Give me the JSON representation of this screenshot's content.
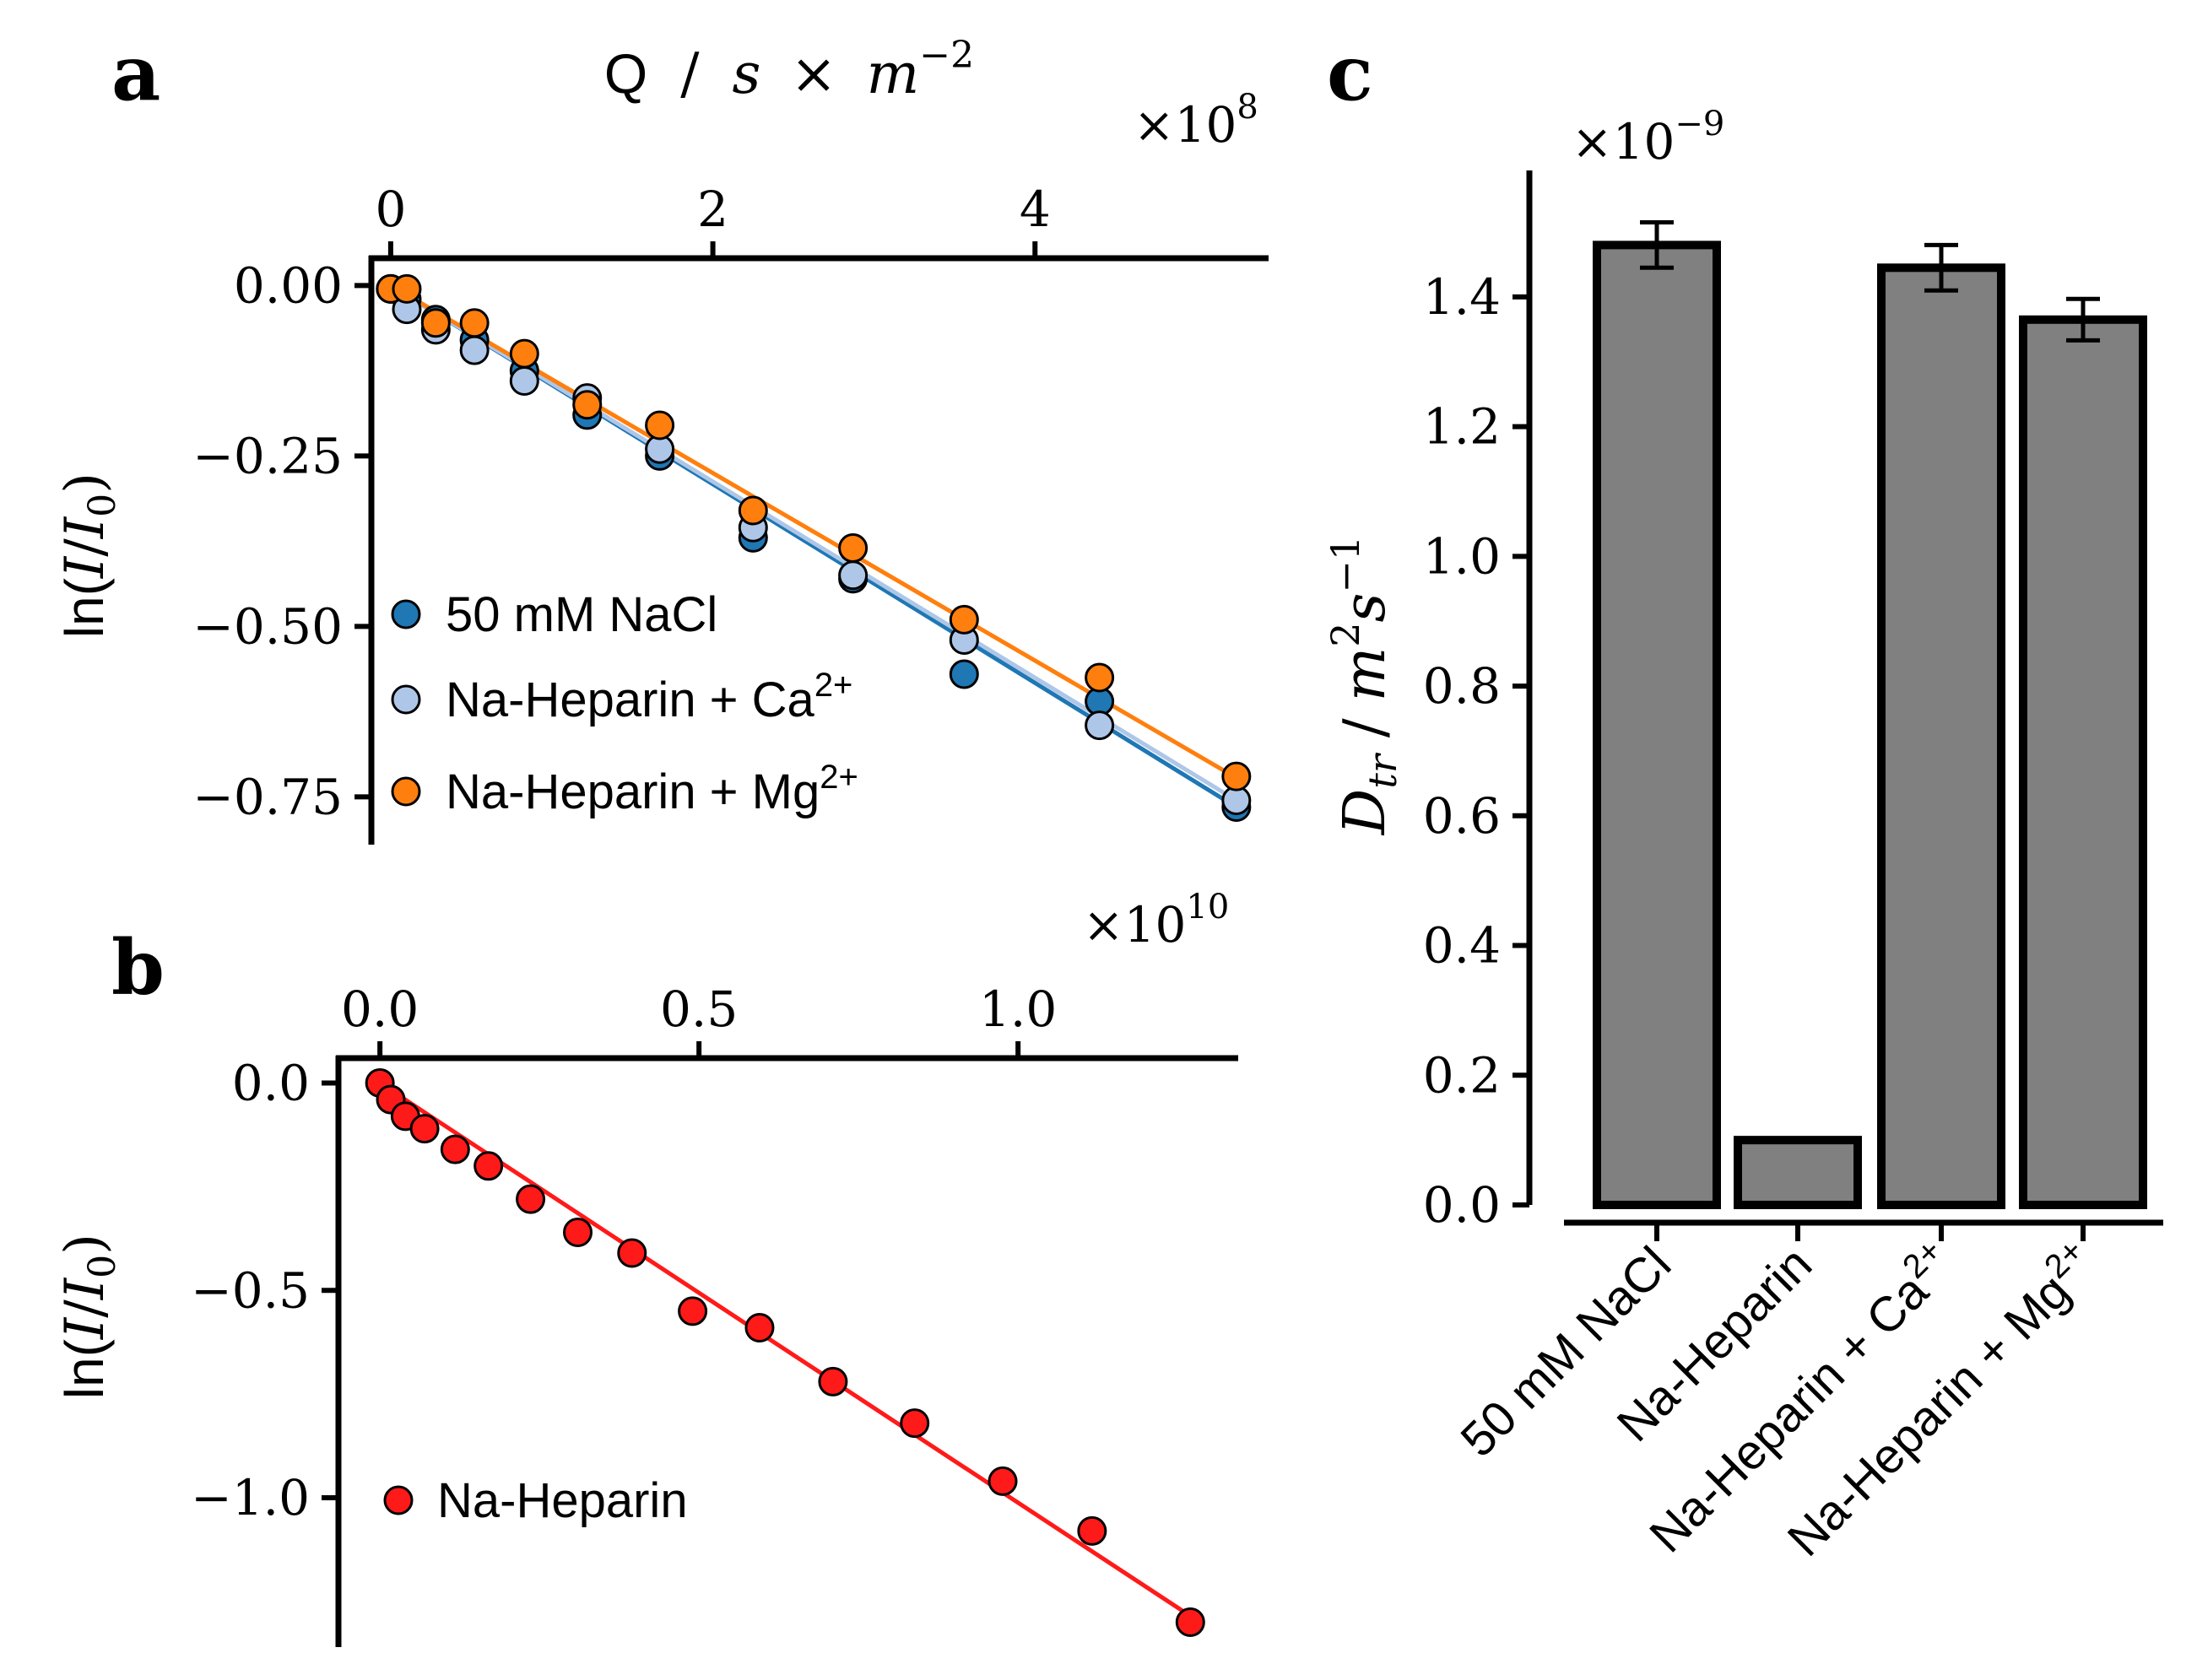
{
  "chart_data": [
    {
      "panel": "a",
      "type": "scatter",
      "title": "",
      "xlabel": "Q / s × m^-2",
      "xlabel_parts": {
        "main": "Q",
        "slash": "/",
        "s": "s",
        "times": "×",
        "m": "m",
        "exp": "−2"
      },
      "x_multiplier": {
        "base": "×10",
        "exp": "8"
      },
      "ylabel": "ln(I/I0)",
      "ylabel_parts": {
        "ln": "ln(",
        "I": "I",
        "slash": "/",
        "I0": "I",
        "sub": "0",
        "close": ")"
      },
      "xlim": [
        -0.12,
        5.45
      ],
      "ylim": [
        -0.82,
        0.04
      ],
      "xticks": [
        0,
        2,
        4
      ],
      "xtick_labels": [
        "0",
        "2",
        "4"
      ],
      "yticks": [
        0.0,
        -0.25,
        -0.5,
        -0.75
      ],
      "ytick_labels": [
        "0.00",
        "−0.25",
        "−0.50",
        "−0.75"
      ],
      "legend_position": "lower-left",
      "series": [
        {
          "name": "50 mM NaCl",
          "color": "#1f77b4",
          "x": [
            0.0,
            0.1,
            0.28,
            0.52,
            0.83,
            1.22,
            1.67,
            2.25,
            2.87,
            3.56,
            4.4,
            5.25
          ],
          "y": [
            -0.005,
            -0.02,
            -0.05,
            -0.08,
            -0.125,
            -0.19,
            -0.25,
            -0.37,
            -0.43,
            -0.57,
            -0.61,
            -0.765
          ],
          "fit": {
            "x": [
              0.0,
              5.25
            ],
            "y": [
              0.0,
              -0.765
            ]
          }
        },
        {
          "name": "Na-Heparin + Ca",
          "name_sup": "2+",
          "color": "#aec7e8",
          "x": [
            0.0,
            0.1,
            0.28,
            0.52,
            0.83,
            1.22,
            1.67,
            2.25,
            2.87,
            3.56,
            4.4,
            5.25
          ],
          "y": [
            -0.005,
            -0.035,
            -0.065,
            -0.095,
            -0.14,
            -0.165,
            -0.24,
            -0.355,
            -0.425,
            -0.52,
            -0.645,
            -0.755
          ],
          "fit": {
            "x": [
              0.0,
              5.25
            ],
            "y": [
              0.0,
              -0.755
            ]
          }
        },
        {
          "name": "Na-Heparin + Mg",
          "name_sup": "2+",
          "color": "#ff7f0e",
          "x": [
            0.0,
            0.1,
            0.28,
            0.52,
            0.83,
            1.22,
            1.67,
            2.25,
            2.87,
            3.56,
            4.4,
            5.25
          ],
          "y": [
            -0.005,
            -0.005,
            -0.055,
            -0.055,
            -0.1,
            -0.175,
            -0.205,
            -0.33,
            -0.385,
            -0.49,
            -0.575,
            -0.72
          ],
          "fit": {
            "x": [
              0.0,
              5.25
            ],
            "y": [
              0.0,
              -0.722
            ]
          }
        }
      ]
    },
    {
      "panel": "b",
      "type": "scatter",
      "title": "",
      "xlabel": "",
      "x_multiplier": {
        "base": "×10",
        "exp": "10"
      },
      "ylabel": "ln(I/I0)",
      "ylabel_parts": {
        "ln": "ln(",
        "I": "I",
        "slash": "/",
        "I0": "I",
        "sub": "0",
        "close": ")"
      },
      "xlim": [
        -0.065,
        1.345
      ],
      "ylim": [
        -1.36,
        0.06
      ],
      "xticks": [
        0.0,
        0.5,
        1.0
      ],
      "xtick_labels": [
        "0.0",
        "0.5",
        "1.0"
      ],
      "yticks": [
        0.0,
        -0.5,
        -1.0
      ],
      "ytick_labels": [
        "0.0",
        "−0.5",
        "−1.0"
      ],
      "legend_position": "lower-left",
      "series": [
        {
          "name": "Na-Heparin",
          "color": "#ff1a1a",
          "x": [
            0.0,
            0.017,
            0.04,
            0.07,
            0.118,
            0.17,
            0.236,
            0.31,
            0.395,
            0.49,
            0.595,
            0.71,
            0.838,
            0.976,
            1.116,
            1.27
          ],
          "y": [
            0.0,
            -0.04,
            -0.08,
            -0.11,
            -0.16,
            -0.2,
            -0.28,
            -0.36,
            -0.41,
            -0.55,
            -0.59,
            -0.72,
            -0.82,
            -0.96,
            -1.08,
            -1.3
          ],
          "fit": {
            "x": [
              0.0,
              1.27
            ],
            "y": [
              0.0,
              -1.285
            ]
          }
        }
      ]
    },
    {
      "panel": "c",
      "type": "bar",
      "title": "",
      "xlabel": "",
      "ylabel": "D_tr / m^2 s^-1",
      "ylabel_parts": {
        "D": "D",
        "sub": "tr",
        "slash": "/",
        "m": "m",
        "msup": "2",
        "s": "s",
        "ssup": "−1"
      },
      "y_multiplier": {
        "base": "×10",
        "exp": "−9"
      },
      "categories": [
        "50 mM NaCl",
        "Na-Heparin",
        "Na-Heparin + Ca",
        "Na-Heparin + Mg"
      ],
      "category_sups": [
        "",
        "",
        "2+",
        "2+"
      ],
      "values": [
        1.48,
        0.1,
        1.445,
        1.365
      ],
      "errors": [
        0.035,
        null,
        0.035,
        0.032
      ],
      "ylim": [
        0.0,
        1.595
      ],
      "yticks": [
        0.0,
        0.2,
        0.4,
        0.6,
        0.8,
        1.0,
        1.2,
        1.4
      ],
      "ytick_labels": [
        "0.0",
        "0.2",
        "0.4",
        "0.6",
        "0.8",
        "1.0",
        "1.2",
        "1.4"
      ],
      "bar_color": "#808080",
      "edge_color": "#000000"
    }
  ],
  "panel_labels": {
    "a": "a",
    "b": "b",
    "c": "c"
  }
}
